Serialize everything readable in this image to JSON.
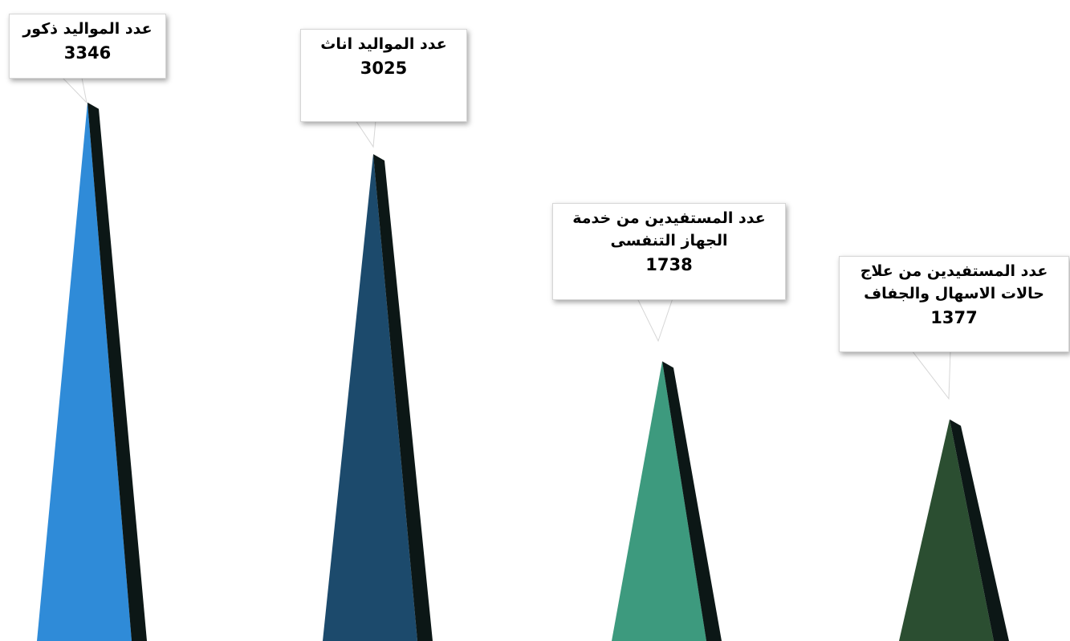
{
  "chart_data": {
    "type": "bar",
    "categories": [
      "عدد المواليد ذكور",
      "عدد المواليد اناث",
      "عدد المستفيدين من خدمة الجهاز التنفسى",
      "عدد المستفيدين من علاج حالات الاسهال والجفاف"
    ],
    "values": [
      3346,
      3025,
      1738,
      1377
    ],
    "labels": [
      {
        "lines": [
          "عدد المواليد ذكور"
        ],
        "value": "3346"
      },
      {
        "lines": [
          "عدد المواليد اناث"
        ],
        "value": "3025"
      },
      {
        "lines": [
          "عدد المستفيدين من خدمة",
          "الجهاز التنفسى"
        ],
        "value": "1738"
      },
      {
        "lines": [
          "عدد المستفيدين من علاج",
          "حالات الاسهال والجفاف"
        ],
        "value": "1377"
      }
    ],
    "colors": [
      "#2f8bd8",
      "#1c4a6c",
      "#3d9a7e",
      "#2b4e31"
    ],
    "shade_color": "#0c1716",
    "title": "",
    "xlabel": "",
    "ylabel": "",
    "grid": false,
    "legend": "none"
  }
}
